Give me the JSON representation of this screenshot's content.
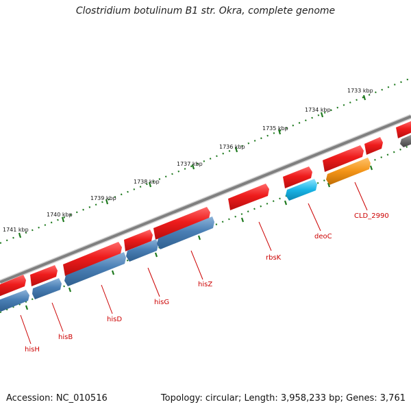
{
  "title": "Clostridium botulinum B1 str. Okra, complete genome",
  "footer": {
    "accession": "Accession: NC_010516",
    "summary": "Topology: circular; Length: 3,958,233 bp; Genes: 3,761"
  },
  "scale_labels": [
    "1741 kbp",
    "1740 kbp",
    "1739 kbp",
    "1738 kbp",
    "1737 kbp",
    "1736 kbp",
    "1735 kbp",
    "1734 kbp",
    "1733 kbp"
  ],
  "colors": {
    "backbone": "#7f7f7f",
    "forward_cds": "#e8141b",
    "reverse_cds": "#4a7fb5",
    "reverse_rna": "#19b4e6",
    "reverse_other": "#f39418",
    "ticks": "#1f7a1f",
    "gene_label": "#cc0000"
  },
  "genes": [
    {
      "name": "",
      "strand": "forward",
      "type": "cds"
    },
    {
      "name": "",
      "strand": "forward",
      "type": "cds"
    },
    {
      "name": "",
      "strand": "forward",
      "type": "cds"
    },
    {
      "name": "",
      "strand": "forward",
      "type": "cds"
    },
    {
      "name": "",
      "strand": "forward",
      "type": "cds"
    },
    {
      "name": "",
      "strand": "forward",
      "type": "cds"
    },
    {
      "name": "",
      "strand": "forward",
      "type": "cds"
    },
    {
      "name": "",
      "strand": "forward",
      "type": "cds"
    },
    {
      "name": "",
      "strand": "forward",
      "type": "cds"
    },
    {
      "name": "",
      "strand": "forward",
      "type": "cds"
    },
    {
      "name": "hisH",
      "strand": "reverse",
      "type": "cds"
    },
    {
      "name": "hisB",
      "strand": "reverse",
      "type": "cds"
    },
    {
      "name": "hisD",
      "strand": "reverse",
      "type": "cds"
    },
    {
      "name": "hisG",
      "strand": "reverse",
      "type": "cds"
    },
    {
      "name": "hisZ",
      "strand": "reverse",
      "type": "cds"
    },
    {
      "name": "rbsK",
      "strand": "forward",
      "type": "cds"
    },
    {
      "name": "deoC",
      "strand": "reverse",
      "type": "rna"
    },
    {
      "name": "CLD_2990",
      "strand": "reverse",
      "type": "other"
    },
    {
      "name": "",
      "strand": "reverse",
      "type": "pseudo"
    }
  ]
}
